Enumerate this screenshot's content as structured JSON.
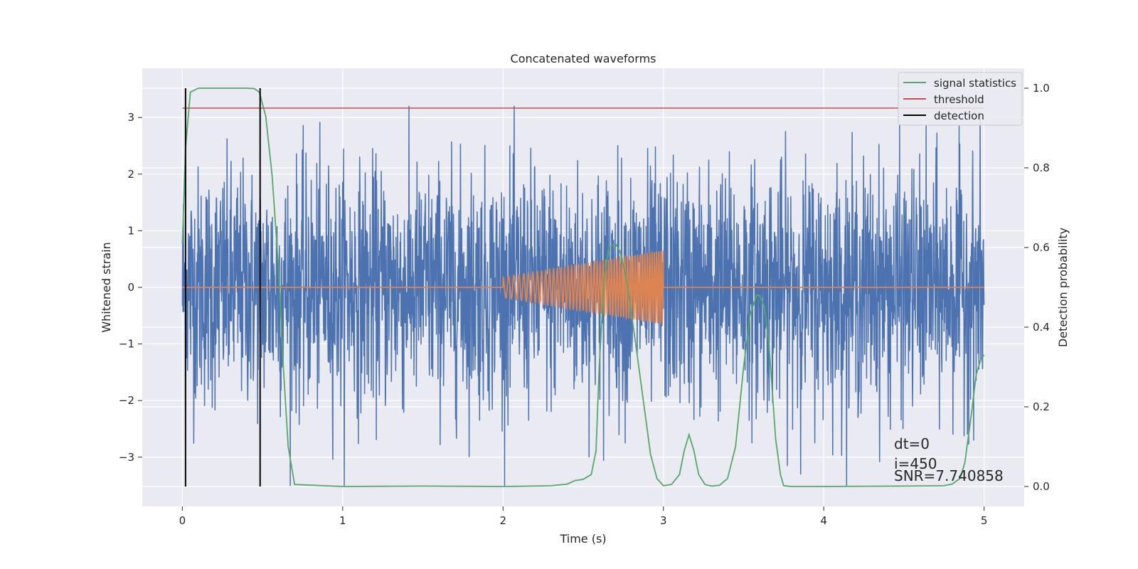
{
  "chart_data": {
    "type": "line",
    "title": "Concatenated waveforms",
    "xlabel": "Time (s)",
    "ylabel": "Whitened strain",
    "y2label": "Detection probability",
    "xlim": [
      -0.25,
      5.25
    ],
    "ylim": [
      -3.87,
      3.87
    ],
    "y2lim": [
      -0.05,
      1.05
    ],
    "xticks": [
      0,
      1,
      2,
      3,
      4,
      5
    ],
    "yticks": [
      -3,
      -2,
      -1,
      0,
      1,
      2,
      3
    ],
    "y2ticks": [
      0.0,
      0.2,
      0.4,
      0.6,
      0.8,
      1.0
    ],
    "x_tick_labels": [
      "0",
      "1",
      "2",
      "3",
      "4",
      "5"
    ],
    "y_tick_labels": [
      "−3",
      "−2",
      "−1",
      "0",
      "1",
      "2",
      "3"
    ],
    "y2_tick_labels": [
      "0.0",
      "0.2",
      "0.4",
      "0.6",
      "0.8",
      "1.0"
    ],
    "grid": true,
    "legend_position": "top-right",
    "series": [
      {
        "name": "whitened strain noise",
        "axis": "left",
        "color": "#4c72b0",
        "x_range": [
          0,
          5
        ],
        "amplitude_typical": 1.2,
        "peak_values": [
          3.2,
          -3.5
        ]
      },
      {
        "name": "injected chirp",
        "axis": "left",
        "color": "#dd8452",
        "x_range": [
          2,
          3
        ],
        "amplitude_start": 0.18,
        "amplitude_end": 0.65
      },
      {
        "name": "signal statistics",
        "axis": "right",
        "color": "#55a868",
        "x": [
          0,
          0.02,
          0.05,
          0.1,
          0.2,
          0.3,
          0.4,
          0.45,
          0.48,
          0.52,
          0.56,
          0.6,
          0.63,
          0.66,
          0.7,
          1.0,
          1.5,
          2.0,
          2.3,
          2.4,
          2.45,
          2.5,
          2.55,
          2.58,
          2.6,
          2.63,
          2.66,
          2.7,
          2.73,
          2.77,
          2.82,
          2.88,
          2.92,
          2.96,
          3.0,
          3.05,
          3.1,
          3.13,
          3.16,
          3.19,
          3.22,
          3.26,
          3.3,
          3.35,
          3.4,
          3.45,
          3.5,
          3.54,
          3.58,
          3.6,
          3.63,
          3.66,
          3.7,
          3.73,
          3.75,
          3.8,
          4.0,
          4.5,
          4.75,
          4.8,
          4.85,
          4.88,
          4.92,
          4.95,
          4.98,
          5.0
        ],
        "values": [
          0.61,
          0.85,
          0.99,
          1.0,
          1.0,
          1.0,
          1.0,
          0.999,
          0.99,
          0.93,
          0.78,
          0.55,
          0.3,
          0.1,
          0.005,
          0.0,
          0.001,
          0.0,
          0.002,
          0.006,
          0.015,
          0.018,
          0.03,
          0.09,
          0.3,
          0.52,
          0.6,
          0.61,
          0.59,
          0.52,
          0.38,
          0.2,
          0.08,
          0.02,
          0.002,
          0.005,
          0.03,
          0.09,
          0.13,
          0.09,
          0.03,
          0.005,
          0.001,
          0.003,
          0.02,
          0.1,
          0.3,
          0.43,
          0.48,
          0.48,
          0.45,
          0.35,
          0.12,
          0.03,
          0.002,
          0.0,
          0.0,
          0.001,
          0.002,
          0.006,
          0.02,
          0.06,
          0.18,
          0.28,
          0.32,
          0.33
        ]
      },
      {
        "name": "threshold",
        "axis": "right",
        "color": "#c44e52",
        "x": [
          0,
          5
        ],
        "values": [
          0.95,
          0.95
        ]
      },
      {
        "name": "detection",
        "axis": "right",
        "color": "#000000",
        "x_positions": [
          0.02,
          0.485
        ],
        "y_range": [
          0.0,
          1.0
        ]
      }
    ],
    "legend": [
      {
        "label": "signal statistics",
        "color": "#55a868"
      },
      {
        "label": "threshold",
        "color": "#c44e52"
      },
      {
        "label": "detection",
        "color": "#000000"
      }
    ],
    "annotations": [
      "dt=0",
      "i=450",
      "SNR=7.740858"
    ]
  }
}
